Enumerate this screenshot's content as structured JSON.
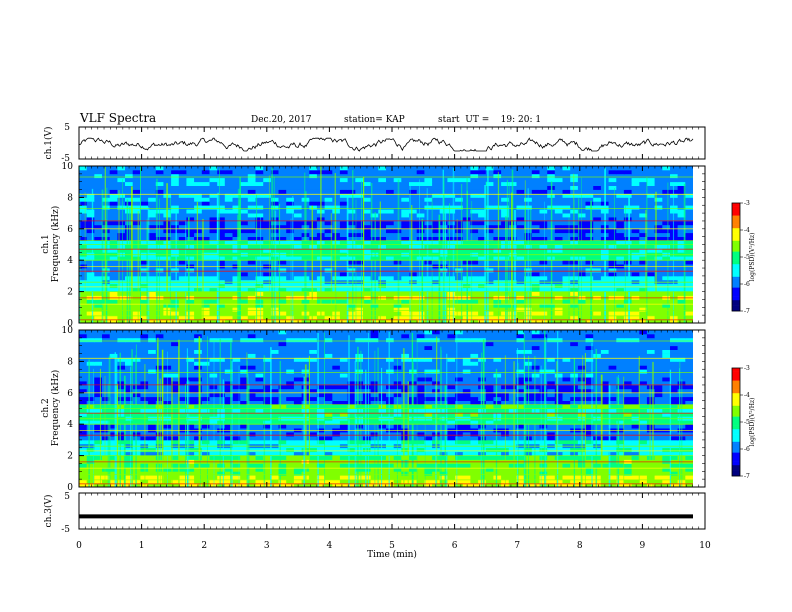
{
  "header": {
    "title": "VLF Spectra",
    "date": "Dec.20, 2017",
    "station": "station= KAP",
    "start_ut": "start  UT =    19: 20: 1"
  },
  "colors": {
    "colormap": [
      "#000080",
      "#0000ff",
      "#0080ff",
      "#00ffff",
      "#00ff80",
      "#80ff00",
      "#ffff00",
      "#ff8000",
      "#ff0000",
      "#ffffff"
    ]
  },
  "chart_data": [
    {
      "type": "line",
      "panel": "ch.1 waveform",
      "ylabel": "ch.1(V)",
      "ylim": [
        -5,
        5
      ],
      "y_ticks": [
        "5",
        "-5"
      ],
      "xlim": [
        0,
        10
      ],
      "trace_min": -2.5,
      "trace_max": 1.5
    },
    {
      "type": "heatmap",
      "panel": "ch.1 spectrogram",
      "ylabel_top": "ch.1",
      "ylabel": "Frequency (kHz)",
      "ylim": [
        0,
        10
      ],
      "y_ticks": [
        "0",
        "2",
        "4",
        "6",
        "8",
        "10"
      ],
      "xlim": [
        0,
        10
      ],
      "colorbar": {
        "label": "log(PSD)(V²/Hz)",
        "range": [
          -7,
          -3
        ],
        "ticks": [
          "-3",
          "-4",
          "-5",
          "-6",
          "-7"
        ]
      }
    },
    {
      "type": "heatmap",
      "panel": "ch.2 spectrogram",
      "ylabel_top": "ch.2",
      "ylabel": "Frequency (kHz)",
      "ylim": [
        0,
        10
      ],
      "y_ticks": [
        "0",
        "2",
        "4",
        "6",
        "8",
        "10"
      ],
      "xlim": [
        0,
        10
      ],
      "colorbar": {
        "label": "log(PSD)(V²/Hz)",
        "range": [
          -7,
          -3
        ],
        "ticks": [
          "-3",
          "-4",
          "-5",
          "-6",
          "-7"
        ]
      }
    },
    {
      "type": "line",
      "panel": "ch.3 waveform",
      "ylabel": "ch.3(V)",
      "ylim": [
        -5,
        5
      ],
      "y_ticks": [
        "5",
        "-5"
      ],
      "xlim": [
        0,
        10
      ],
      "constant_value": -1.5
    }
  ],
  "x_axis": {
    "label": "Time (min)",
    "ticks": [
      "0",
      "1",
      "2",
      "3",
      "4",
      "5",
      "6",
      "7",
      "8",
      "9",
      "10"
    ]
  }
}
